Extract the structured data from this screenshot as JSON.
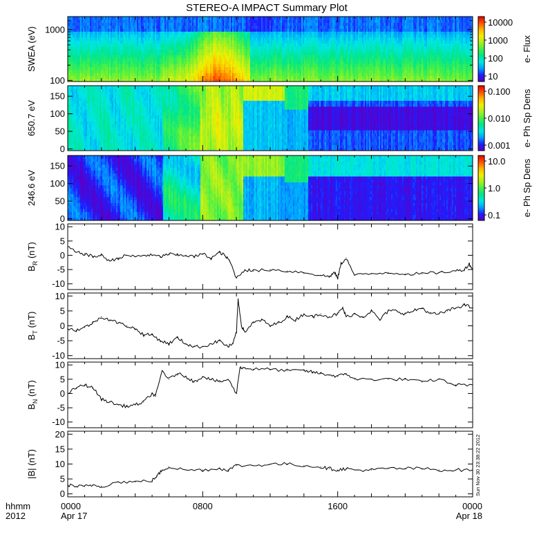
{
  "title": "STEREO-A IMPACT Summary Plot",
  "stamp": "Sun Nov 30 23:38:22 2012",
  "footer": {
    "left_top": "hhmm",
    "left_bottom": "2012",
    "x_ticks": [
      {
        "t": 0,
        "label": "0000",
        "sub": "Apr 17"
      },
      {
        "t": 8,
        "label": "0800",
        "sub": ""
      },
      {
        "t": 16,
        "label": "1600",
        "sub": ""
      },
      {
        "t": 24,
        "label": "0000",
        "sub": "Apr 18"
      }
    ]
  },
  "colors": {
    "cmap": [
      "#5a00c8",
      "#1e1eff",
      "#00a0ff",
      "#00e6e6",
      "#00e68c",
      "#46f046",
      "#aaf01e",
      "#f0f000",
      "#ffb400",
      "#ff5000",
      "#e60000"
    ]
  },
  "chart_data": [
    {
      "id": "swea",
      "type": "heatmap",
      "ylabel": "SWEA (eV)",
      "ylog": true,
      "ylim": [
        95,
        1800
      ],
      "yticks": [
        {
          "v": 100,
          "label": "100"
        },
        {
          "v": 1000,
          "label": "1000"
        }
      ],
      "colorbar": {
        "label": "e- Flux",
        "ticks": [
          "10000",
          "1000",
          "100",
          "10"
        ]
      },
      "xlim": [
        0,
        24
      ],
      "features": "low-energy band orange/red 0530-1100 UT peaking ~0900; green elsewhere; blue above ~700 eV"
    },
    {
      "id": "pad650",
      "type": "heatmap",
      "ylabel": "650.7 eV",
      "ylim": [
        -5,
        180
      ],
      "yticks": [
        {
          "v": 0,
          "label": "0"
        },
        {
          "v": 50,
          "label": "50"
        },
        {
          "v": 100,
          "label": "100"
        },
        {
          "v": 150,
          "label": "150"
        }
      ],
      "colorbar": {
        "label": "e- Ph Sp Dens",
        "ticks": [
          "0.100",
          "0.010",
          "0.001"
        ]
      },
      "xlim": [
        0,
        24
      ]
    },
    {
      "id": "pad246",
      "type": "heatmap",
      "ylabel": "246.6 eV",
      "ylim": [
        -5,
        180
      ],
      "yticks": [
        {
          "v": 0,
          "label": "0"
        },
        {
          "v": 50,
          "label": "50"
        },
        {
          "v": 100,
          "label": "100"
        },
        {
          "v": 150,
          "label": "150"
        }
      ],
      "colorbar": {
        "label": "e- Ph Sp Dens",
        "ticks": [
          "10.0",
          "1.0",
          "0.1"
        ]
      },
      "xlim": [
        0,
        24
      ]
    },
    {
      "id": "br",
      "type": "line",
      "ylabel": "B",
      "ysub": "R",
      "yunit": " (nT)",
      "ylim": [
        -12,
        11
      ],
      "yticks": [
        {
          "v": -10,
          "label": "-10"
        },
        {
          "v": -5,
          "label": "-5"
        },
        {
          "v": 0,
          "label": "0"
        },
        {
          "v": 5,
          "label": "5"
        },
        {
          "v": 10,
          "label": "10"
        }
      ],
      "x": [
        0,
        0.5,
        1,
        1.5,
        2,
        2.5,
        3,
        3.5,
        4,
        4.5,
        5,
        5.5,
        6,
        6.5,
        7,
        7.5,
        8,
        8.5,
        9,
        9.3,
        9.6,
        10,
        10.5,
        11,
        12,
        13,
        14,
        15,
        15.5,
        15.8,
        16,
        16.2,
        16.5,
        17,
        18,
        19,
        20,
        21,
        22,
        23,
        23.5,
        23.8,
        24
      ],
      "y": [
        3,
        1,
        0.5,
        -0.5,
        0,
        -2,
        -1,
        0,
        -0.5,
        0,
        0,
        -0.5,
        0.5,
        0,
        0,
        -0.5,
        0.5,
        -1,
        1,
        0,
        -2,
        -8,
        -5,
        -5.5,
        -5,
        -5.5,
        -6,
        -7,
        -7.5,
        -6,
        -8,
        -3,
        -1,
        -7,
        -6.5,
        -6,
        -6.5,
        -6.5,
        -6,
        -5.5,
        -5,
        -3,
        -5
      ]
    },
    {
      "id": "bt",
      "type": "line",
      "ylabel": "B",
      "ysub": "T",
      "yunit": " (nT)",
      "ylim": [
        -11,
        11
      ],
      "yticks": [
        {
          "v": -10,
          "label": "-10"
        },
        {
          "v": -5,
          "label": "-5"
        },
        {
          "v": 0,
          "label": "0"
        },
        {
          "v": 5,
          "label": "5"
        },
        {
          "v": 10,
          "label": "10"
        }
      ],
      "x": [
        0,
        0.5,
        1,
        1.5,
        2,
        2.5,
        3,
        3.5,
        4,
        4.5,
        5,
        5.5,
        6,
        6.5,
        7,
        7.5,
        8,
        8.5,
        9,
        9.5,
        9.8,
        10,
        10.1,
        10.3,
        10.5,
        11,
        11.5,
        12,
        12.5,
        13,
        13.5,
        14,
        14.5,
        15,
        15.5,
        16,
        16.3,
        16.5,
        17,
        17.5,
        18,
        18.5,
        19,
        19.5,
        20,
        20.5,
        21,
        21.5,
        22,
        22.5,
        23,
        23.5,
        24
      ],
      "y": [
        -1,
        -1.5,
        -0.5,
        1,
        3,
        2,
        1,
        0,
        -1,
        -3,
        -3,
        -5,
        -6,
        -4,
        -6,
        -7,
        -7,
        -6,
        -5,
        -7,
        -6,
        -2,
        9,
        0,
        -2,
        1,
        2,
        0,
        1,
        3,
        2,
        4,
        3,
        4,
        3,
        4,
        6,
        3,
        4,
        3,
        5,
        2,
        5,
        5,
        4,
        5,
        6,
        4,
        4,
        5,
        6,
        7,
        6
      ]
    },
    {
      "id": "bn",
      "type": "line",
      "ylabel": "B",
      "ysub": "N",
      "yunit": " (nT)",
      "ylim": [
        -12,
        11
      ],
      "yticks": [
        {
          "v": -10,
          "label": "-10"
        },
        {
          "v": -5,
          "label": "-5"
        },
        {
          "v": 0,
          "label": "0"
        },
        {
          "v": 5,
          "label": "5"
        },
        {
          "v": 10,
          "label": "10"
        }
      ],
      "x": [
        0,
        0.5,
        1,
        1.5,
        2,
        2.5,
        3,
        3.5,
        4,
        4.5,
        5,
        5.2,
        5.6,
        6,
        6.5,
        7,
        7.5,
        8,
        8.5,
        9,
        9.5,
        10,
        10.2,
        10.5,
        11,
        12,
        13,
        14,
        14.5,
        15,
        15.5,
        16,
        16.5,
        17,
        18,
        19,
        20,
        21,
        22,
        23,
        24
      ],
      "y": [
        0,
        2,
        3,
        2,
        -2,
        -3,
        -4,
        -4.5,
        -4,
        -3,
        0,
        -1,
        8,
        5,
        7,
        6,
        4,
        6,
        5,
        4,
        5,
        0,
        9,
        9,
        8.5,
        8.5,
        8,
        8,
        7.5,
        7,
        6.5,
        6,
        7,
        5,
        5,
        5,
        5,
        4,
        5,
        3,
        3
      ]
    },
    {
      "id": "bmag",
      "type": "line",
      "ylabel": "|B| (nT)",
      "ylim": [
        -1,
        21
      ],
      "yticks": [
        {
          "v": 0,
          "label": "0"
        },
        {
          "v": 5,
          "label": "5"
        },
        {
          "v": 10,
          "label": "10"
        },
        {
          "v": 15,
          "label": "15"
        },
        {
          "v": 20,
          "label": "20"
        }
      ],
      "x": [
        0,
        0.5,
        1,
        1.5,
        2,
        3,
        4,
        5,
        5.3,
        5.6,
        6,
        7,
        8,
        9,
        9.5,
        10,
        11,
        12,
        13,
        14,
        15,
        15.5,
        16,
        16.5,
        17,
        18,
        19,
        20,
        21,
        22,
        23,
        24
      ],
      "y": [
        3,
        2.5,
        2.5,
        3,
        2.5,
        4,
        4,
        4.5,
        6,
        8,
        9,
        8,
        8,
        8.5,
        8,
        9.5,
        9.5,
        10,
        10,
        9.5,
        9,
        8.5,
        8,
        8.5,
        8,
        8,
        8.5,
        8.5,
        8.5,
        8,
        8,
        8
      ]
    }
  ]
}
